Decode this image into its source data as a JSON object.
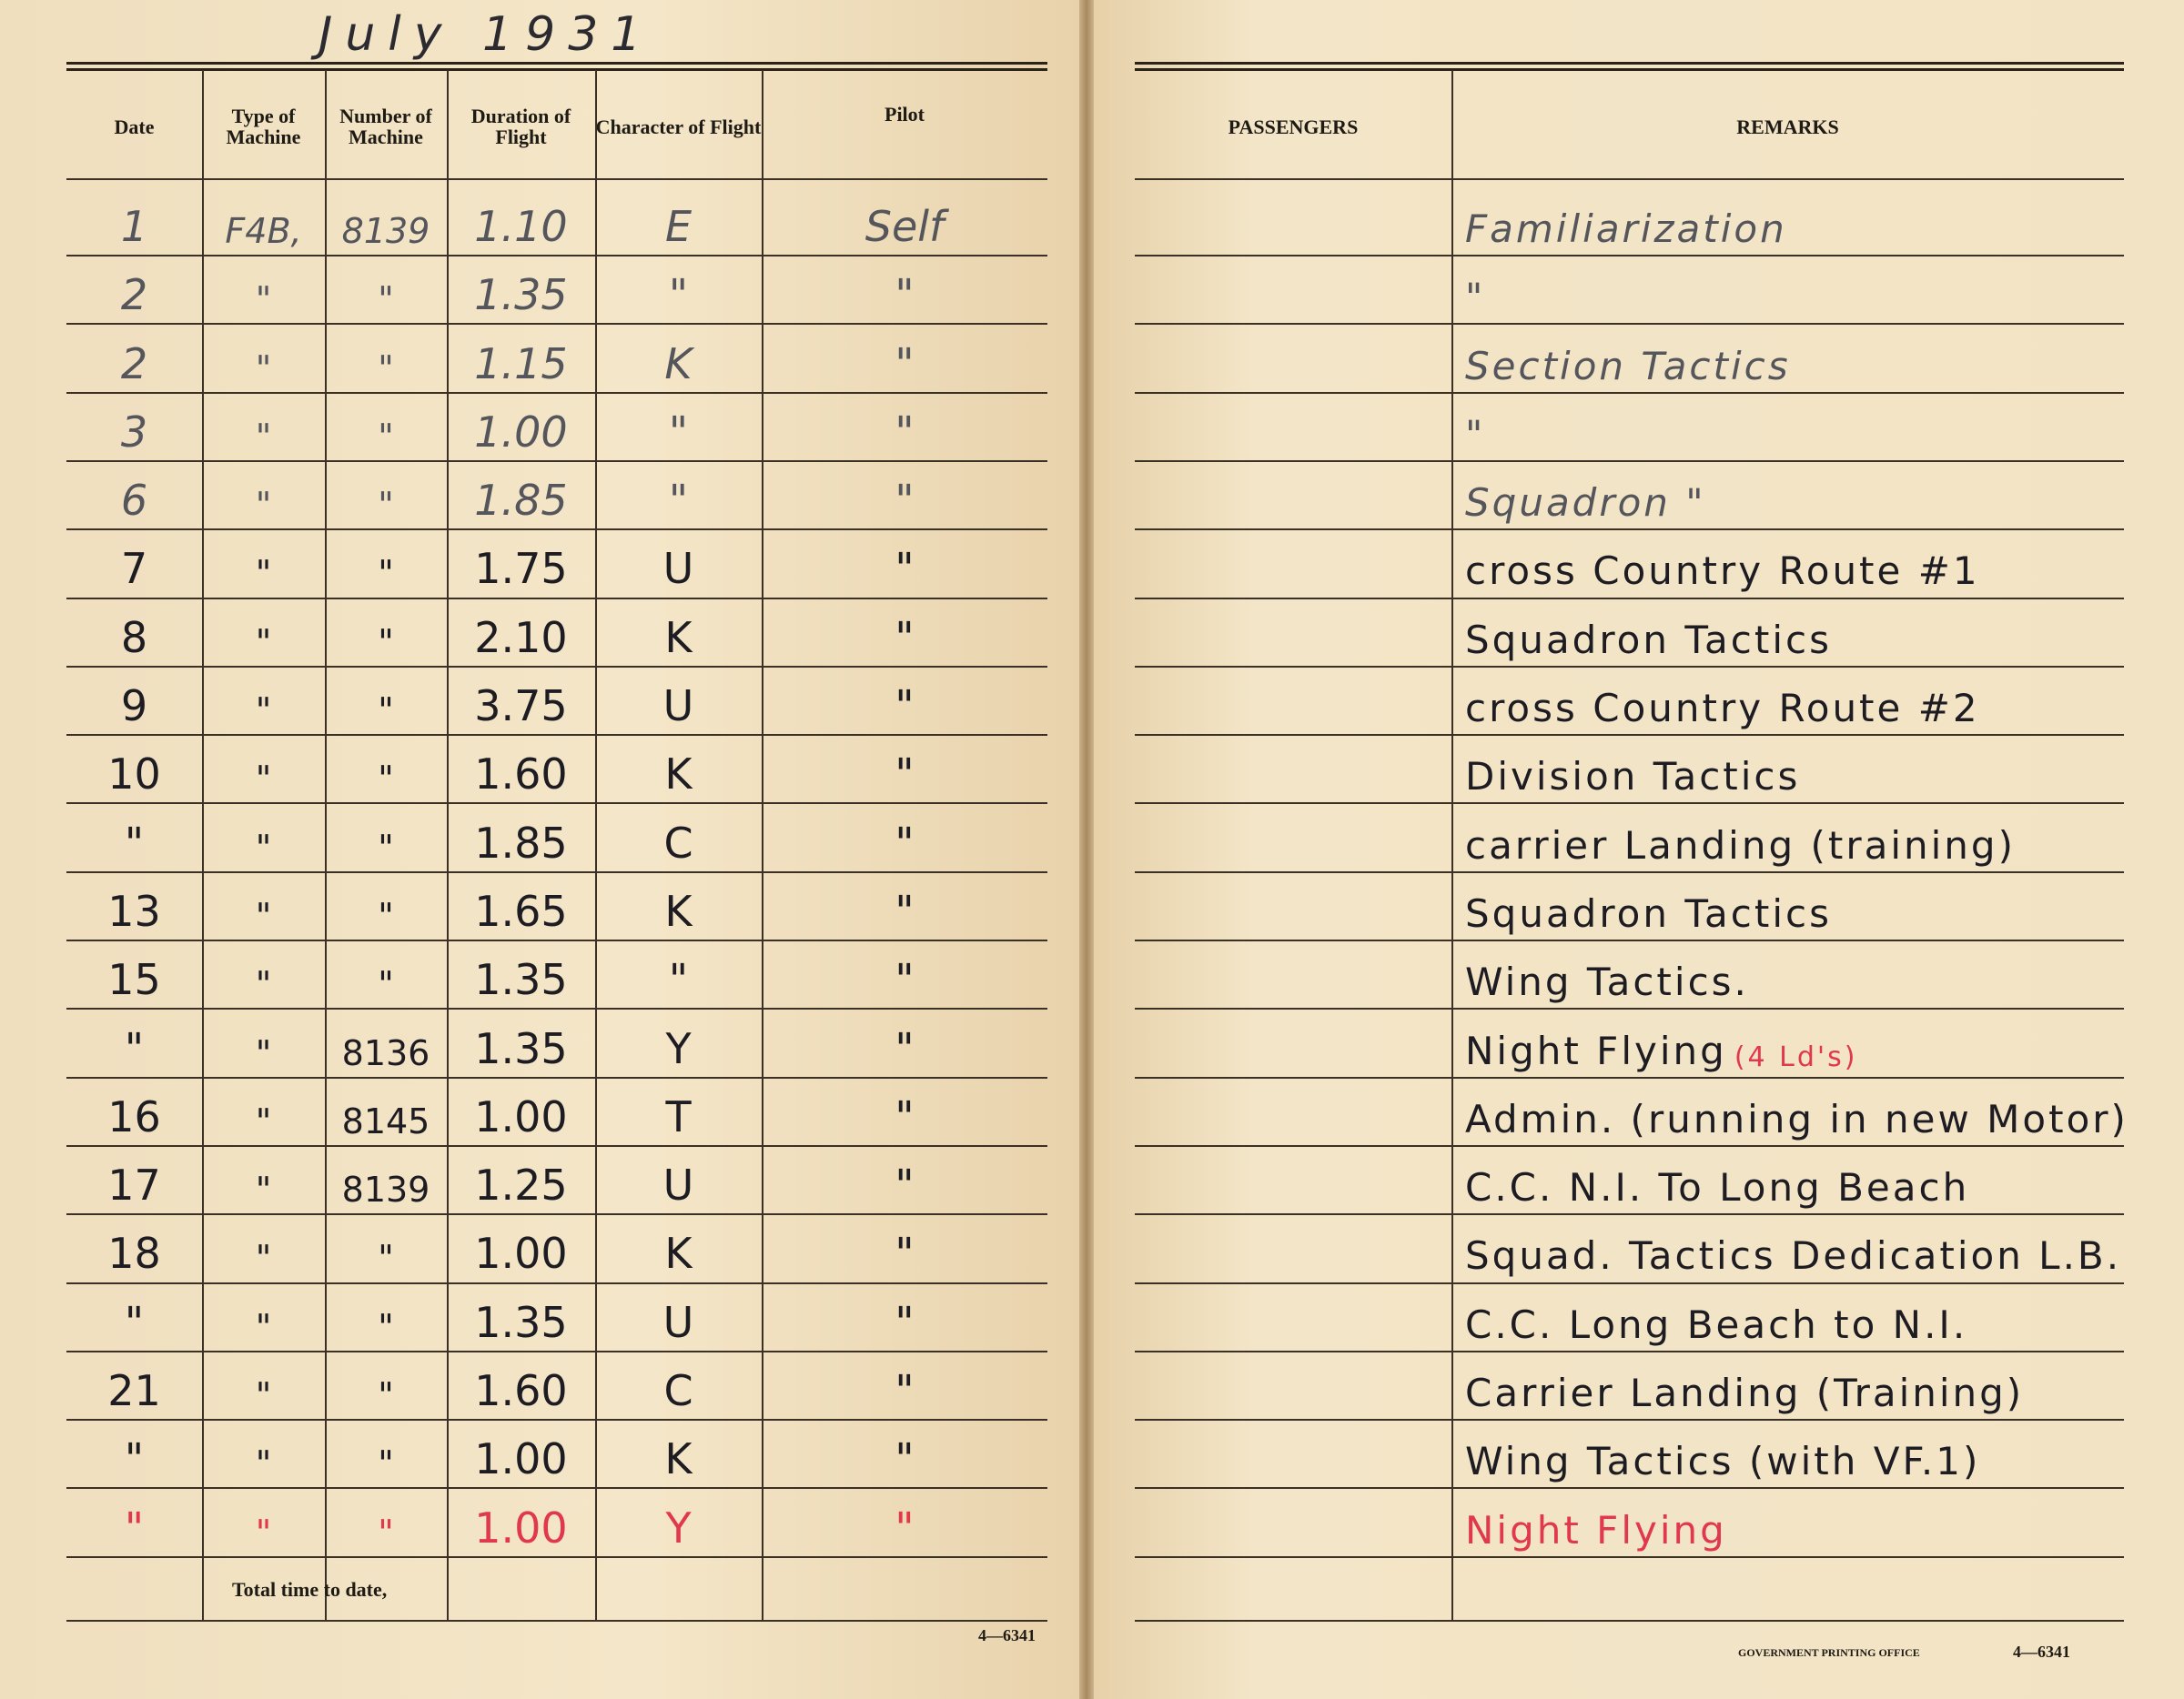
{
  "left_page": {
    "month_heading": "July 1931",
    "headers": {
      "date": "Date",
      "type_of_machine": "Type of Machine",
      "number_of_machine": "Number of Machine",
      "duration_of_flight": "Duration of Flight",
      "character_of_flight": "Character of Flight",
      "pilot": "Pilot"
    },
    "total_label": "Total time to date,",
    "form_number": "4—6341"
  },
  "right_page": {
    "headers": {
      "passengers": "PASSENGERS",
      "remarks": "REMARKS"
    },
    "printer": "GOVERNMENT PRINTING OFFICE",
    "form_number": "4—6341"
  },
  "ink_colors": {
    "black": "#1d1c22",
    "pencil": "#55555c",
    "red": "#e0384c"
  },
  "entries": [
    {
      "date": "1",
      "type": "F4B,",
      "number": "8139",
      "duration": "1.10",
      "character": "E",
      "pilot": "Self",
      "remarks": "Familiarization",
      "ink": "pencil"
    },
    {
      "date": "2",
      "type": "\"",
      "number": "\"",
      "duration": "1.35",
      "character": "\"",
      "pilot": "\"",
      "remarks": "\"",
      "ink": "pencil"
    },
    {
      "date": "2",
      "type": "\"",
      "number": "\"",
      "duration": "1.15",
      "character": "K",
      "pilot": "\"",
      "remarks": "Section Tactics",
      "ink": "pencil"
    },
    {
      "date": "3",
      "type": "\"",
      "number": "\"",
      "duration": "1.00",
      "character": "\"",
      "pilot": "\"",
      "remarks": "\"",
      "ink": "pencil"
    },
    {
      "date": "6",
      "type": "\"",
      "number": "\"",
      "duration": "1.85",
      "character": "\"",
      "pilot": "\"",
      "remarks": "Squadron \"",
      "ink": "pencil"
    },
    {
      "date": "7",
      "type": "\"",
      "number": "\"",
      "duration": "1.75",
      "character": "U",
      "pilot": "\"",
      "remarks": "cross Country Route #1",
      "ink": "black"
    },
    {
      "date": "8",
      "type": "\"",
      "number": "\"",
      "duration": "2.10",
      "character": "K",
      "pilot": "\"",
      "remarks": "Squadron Tactics",
      "ink": "black"
    },
    {
      "date": "9",
      "type": "\"",
      "number": "\"",
      "duration": "3.75",
      "character": "U",
      "pilot": "\"",
      "remarks": "cross Country Route #2",
      "ink": "black"
    },
    {
      "date": "10",
      "type": "\"",
      "number": "\"",
      "duration": "1.60",
      "character": "K",
      "pilot": "\"",
      "remarks": "Division Tactics",
      "ink": "black"
    },
    {
      "date": "\"",
      "type": "\"",
      "number": "\"",
      "duration": "1.85",
      "character": "C",
      "pilot": "\"",
      "remarks": "carrier Landing (training)",
      "ink": "black"
    },
    {
      "date": "13",
      "type": "\"",
      "number": "\"",
      "duration": "1.65",
      "character": "K",
      "pilot": "\"",
      "remarks": "Squadron Tactics",
      "ink": "black"
    },
    {
      "date": "15",
      "type": "\"",
      "number": "\"",
      "duration": "1.35",
      "character": "\"",
      "pilot": "\"",
      "remarks": "Wing Tactics.",
      "ink": "black"
    },
    {
      "date": "\"",
      "type": "\"",
      "number": "8136",
      "duration": "1.35",
      "character": "Y",
      "pilot": "\"",
      "remarks": "Night Flying",
      "remarks_note": "(4 Ld's)",
      "ink": "black"
    },
    {
      "date": "16",
      "type": "\"",
      "number": "8145",
      "duration": "1.00",
      "character": "T",
      "pilot": "\"",
      "remarks": "Admin. (running in new Motor)",
      "ink": "black"
    },
    {
      "date": "17",
      "type": "\"",
      "number": "8139",
      "duration": "1.25",
      "character": "U",
      "pilot": "\"",
      "remarks": "C.C. N.I. To Long Beach",
      "ink": "black"
    },
    {
      "date": "18",
      "type": "\"",
      "number": "\"",
      "duration": "1.00",
      "character": "K",
      "pilot": "\"",
      "remarks": "Squad. Tactics Dedication L.B.",
      "ink": "black"
    },
    {
      "date": "\"",
      "type": "\"",
      "number": "\"",
      "duration": "1.35",
      "character": "U",
      "pilot": "\"",
      "remarks": "C.C. Long Beach to N.I.",
      "ink": "black"
    },
    {
      "date": "21",
      "type": "\"",
      "number": "\"",
      "duration": "1.60",
      "character": "C",
      "pilot": "\"",
      "remarks": "Carrier Landing (Training)",
      "ink": "black"
    },
    {
      "date": "\"",
      "type": "\"",
      "number": "\"",
      "duration": "1.00",
      "character": "K",
      "pilot": "\"",
      "remarks": "Wing Tactics (with VF.1)",
      "ink": "black"
    },
    {
      "date": "\"",
      "type": "\"",
      "number": "\"",
      "duration": "1.00",
      "character": "Y",
      "pilot": "\"",
      "remarks": "Night Flying",
      "ink": "red"
    }
  ]
}
